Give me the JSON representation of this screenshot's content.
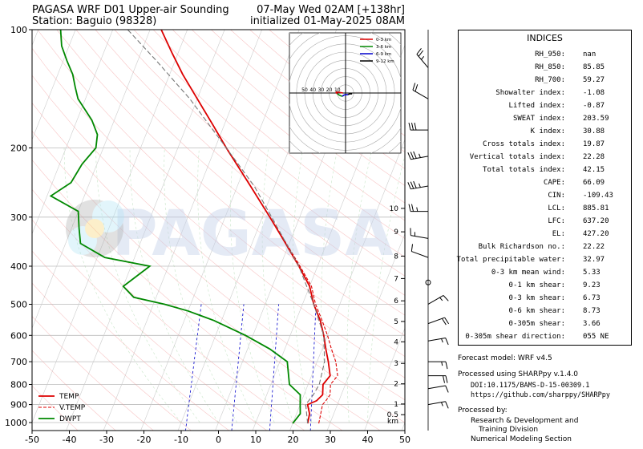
{
  "header": {
    "title_left_1": "PAGASA WRF D01 Upper-air Sounding",
    "title_left_2": "Station: Baguio (98328)",
    "title_right_1": "07-May Wed 02AM [+138hr]",
    "title_right_2": "initialized 01-May-2025 08AM"
  },
  "watermark": "PAGASA",
  "chart_data": {
    "type": "line",
    "subtype": "skew-t log-p",
    "xlabel": "",
    "ylabel": "",
    "xlim": [
      -50,
      50
    ],
    "ylim": [
      1050,
      100
    ],
    "x_ticks": [
      "-50",
      "-40",
      "-30",
      "-20",
      "-10",
      "0",
      "10",
      "20",
      "30",
      "40",
      "50"
    ],
    "p_ticks": [
      "100",
      "200",
      "300",
      "400",
      "500",
      "600",
      "700",
      "800",
      "900",
      "1000"
    ],
    "height_ticks": [
      {
        "label": "10",
        "p": 285
      },
      {
        "label": "9",
        "p": 327
      },
      {
        "label": "8",
        "p": 377
      },
      {
        "label": "7",
        "p": 430
      },
      {
        "label": "6",
        "p": 490
      },
      {
        "label": "5",
        "p": 553
      },
      {
        "label": "4",
        "p": 623
      },
      {
        "label": "3",
        "p": 707
      },
      {
        "label": "2",
        "p": 797
      },
      {
        "label": "1",
        "p": 897
      },
      {
        "label": "0.5",
        "p": 955
      },
      {
        "label": "km",
        "p": 990
      }
    ],
    "legend_position": "bottom-left",
    "series": [
      {
        "name": "TEMP",
        "color": "#dd0000",
        "style": "solid",
        "points": [
          [
            1005,
            24
          ],
          [
            950,
            23.5
          ],
          [
            900,
            22
          ],
          [
            880,
            24
          ],
          [
            850,
            25
          ],
          [
            800,
            24
          ],
          [
            760,
            25
          ],
          [
            700,
            23
          ],
          [
            650,
            21
          ],
          [
            600,
            19
          ],
          [
            550,
            16.5
          ],
          [
            500,
            13
          ],
          [
            450,
            10
          ],
          [
            400,
            5
          ],
          [
            350,
            -1
          ],
          [
            300,
            -8
          ],
          [
            250,
            -16.5
          ],
          [
            200,
            -27
          ],
          [
            175,
            -33
          ],
          [
            150,
            -40
          ],
          [
            130,
            -46.5
          ],
          [
            115,
            -51.5
          ],
          [
            100,
            -57
          ]
        ]
      },
      {
        "name": "V.TEMP",
        "color": "#dd0000",
        "style": "dashed",
        "points": [
          [
            1005,
            27
          ],
          [
            950,
            26.5
          ],
          [
            900,
            26
          ],
          [
            880,
            26.5
          ],
          [
            850,
            27
          ],
          [
            800,
            26
          ],
          [
            760,
            27
          ],
          [
            700,
            25
          ],
          [
            650,
            22.5
          ],
          [
            600,
            20
          ],
          [
            550,
            17
          ],
          [
            500,
            13.5
          ],
          [
            450,
            10.5
          ],
          [
            400,
            5.3
          ],
          [
            350,
            -0.8
          ],
          [
            300,
            -8
          ],
          [
            250,
            -16.5
          ],
          [
            200,
            -27
          ],
          [
            175,
            -33
          ],
          [
            150,
            -40
          ],
          [
            130,
            -46.5
          ],
          [
            115,
            -51.5
          ],
          [
            100,
            -57
          ]
        ]
      },
      {
        "name": "DWPT",
        "color": "#008800",
        "style": "solid",
        "points": [
          [
            1005,
            20
          ],
          [
            950,
            21
          ],
          [
            900,
            20
          ],
          [
            850,
            19
          ],
          [
            800,
            15
          ],
          [
            700,
            12
          ],
          [
            650,
            6
          ],
          [
            600,
            -2
          ],
          [
            550,
            -12
          ],
          [
            520,
            -20
          ],
          [
            500,
            -27
          ],
          [
            480,
            -36
          ],
          [
            450,
            -40
          ],
          [
            400,
            -35
          ],
          [
            380,
            -48
          ],
          [
            350,
            -56
          ],
          [
            320,
            -58
          ],
          [
            290,
            -60
          ],
          [
            265,
            -69
          ],
          [
            245,
            -65
          ],
          [
            220,
            -64
          ],
          [
            200,
            -62
          ],
          [
            185,
            -63
          ],
          [
            170,
            -66
          ],
          [
            150,
            -72
          ],
          [
            140,
            -74
          ],
          [
            130,
            -76
          ],
          [
            120,
            -79
          ],
          [
            110,
            -82
          ],
          [
            100,
            -84
          ]
        ]
      },
      {
        "name": "",
        "color": "#777777",
        "style": "dashed",
        "points": [
          [
            1005,
            24
          ],
          [
            900,
            21.5
          ],
          [
            850,
            22.5
          ],
          [
            800,
            23
          ],
          [
            700,
            22
          ],
          [
            600,
            19
          ],
          [
            500,
            13
          ],
          [
            400,
            5
          ],
          [
            300,
            -7.5
          ],
          [
            250,
            -15.5
          ],
          [
            200,
            -27
          ],
          [
            150,
            -42
          ],
          [
            120,
            -55
          ],
          [
            100,
            -66
          ]
        ]
      }
    ],
    "hodograph": {
      "legend": [
        {
          "name": "0-3 km",
          "color": "#dd0000"
        },
        {
          "name": "3-6 km",
          "color": "#008800"
        },
        {
          "name": "6-9 km",
          "color": "#0000cc"
        },
        {
          "name": "9-12 km",
          "color": "#000000"
        }
      ],
      "ring_labels": [
        "50",
        "40",
        "30",
        "20",
        "10"
      ],
      "points": [
        [
          -3,
          0
        ],
        [
          -6,
          0.5
        ],
        [
          -8,
          1
        ],
        [
          -12,
          1
        ],
        [
          -10,
          -1
        ],
        [
          -7,
          -3
        ],
        [
          -4,
          -4
        ],
        [
          -1,
          -2
        ],
        [
          3,
          -2
        ],
        [
          5,
          -1
        ],
        [
          8,
          -1
        ]
      ]
    },
    "wind_barbs": [
      {
        "p": 125,
        "spd": 25,
        "dir": 320
      },
      {
        "p": 150,
        "spd": 20,
        "dir": 300
      },
      {
        "p": 180,
        "spd": 30,
        "dir": 270
      },
      {
        "p": 210,
        "spd": 35,
        "dir": 260
      },
      {
        "p": 250,
        "spd": 35,
        "dir": 260
      },
      {
        "p": 290,
        "spd": 25,
        "dir": 270
      },
      {
        "p": 340,
        "spd": 15,
        "dir": 280
      },
      {
        "p": 380,
        "spd": 10,
        "dir": 290
      },
      {
        "p": 440,
        "spd": 0,
        "dir": 0
      },
      {
        "p": 500,
        "spd": 15,
        "dir": 60
      },
      {
        "p": 560,
        "spd": 20,
        "dir": 70
      },
      {
        "p": 620,
        "spd": 15,
        "dir": 80
      },
      {
        "p": 700,
        "spd": 15,
        "dir": 90
      },
      {
        "p": 760,
        "spd": 20,
        "dir": 90
      },
      {
        "p": 820,
        "spd": 10,
        "dir": 80
      },
      {
        "p": 900,
        "spd": 15,
        "dir": 80
      }
    ]
  },
  "indices": {
    "title": "INDICES",
    "rows": [
      {
        "label": "RH_950:",
        "value": "nan"
      },
      {
        "label": "RH_850:",
        "value": "85.85"
      },
      {
        "label": "RH_700:",
        "value": "59.27"
      },
      {
        "label": "Showalter index:",
        "value": "-1.08"
      },
      {
        "label": "Lifted index:",
        "value": "-0.87"
      },
      {
        "label": "SWEAT index:",
        "value": "203.59"
      },
      {
        "label": "K index:",
        "value": "30.88"
      },
      {
        "label": "Cross totals index:",
        "value": "19.87"
      },
      {
        "label": "Vertical totals index:",
        "value": "22.28"
      },
      {
        "label": "Total totals index:",
        "value": "42.15"
      },
      {
        "label": "CAPE:",
        "value": "66.09"
      },
      {
        "label": "CIN:",
        "value": "-109.43"
      },
      {
        "label": "LCL:",
        "value": "885.81"
      },
      {
        "label": "LFC:",
        "value": "637.20"
      },
      {
        "label": "EL:",
        "value": "427.20"
      },
      {
        "label": "Bulk Richardson no.:",
        "value": "22.22"
      },
      {
        "label": "Total precipitable water:",
        "value": "32.97"
      },
      {
        "label": "0-3 km mean wind:",
        "value": "5.33"
      },
      {
        "label": "0-1 km shear:",
        "value": "9.23"
      },
      {
        "label": "0-3 km shear:",
        "value": "6.73"
      },
      {
        "label": "0-6 km shear:",
        "value": "8.73"
      },
      {
        "label": "0-305m shear:",
        "value": "3.66"
      },
      {
        "label": "0-305m shear direction:",
        "value": "055 NE"
      }
    ]
  },
  "footer": {
    "model": "Forecast model: WRF v4.5",
    "processed": "Processed using SHARPpy v.1.4.0",
    "doi": "DOI:10.1175/BAMS-D-15-00309.1",
    "url": "https://github.com/sharppy/SHARPpy",
    "processed_by": "Processed by:",
    "org_1": "Research & Development and",
    "org_2": "Training Division",
    "org_3": "Numerical Modeling Section"
  }
}
